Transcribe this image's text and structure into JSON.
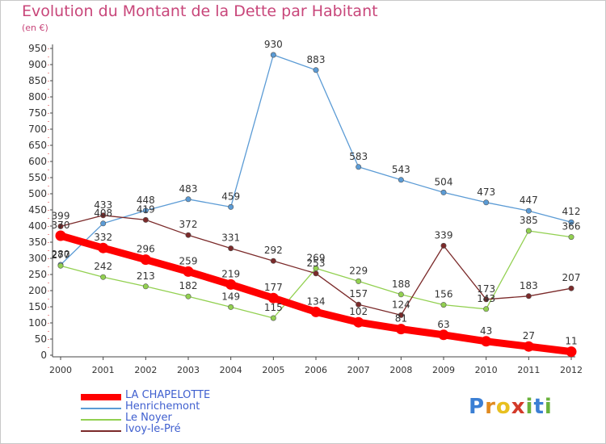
{
  "title": "Evolution du Montant de la Dette par Habitant",
  "subtitle": "(en €)",
  "brand": {
    "name": "Proxiti",
    "letters": [
      "P",
      "r",
      "o",
      "x",
      "i",
      "t",
      "i"
    ],
    "colors": [
      "#3b7fd4",
      "#e08a20",
      "#e8c020",
      "#d33a2a",
      "#6ab23c",
      "#3b7fd4",
      "#6ab23c"
    ]
  },
  "chart_data": {
    "type": "line",
    "title": "Evolution du Montant de la Dette par Habitant",
    "subtitle": "(en €)",
    "xlabel": "",
    "ylabel": "",
    "ylim": [
      0,
      950
    ],
    "yticks": [
      0,
      50,
      100,
      150,
      200,
      250,
      300,
      350,
      400,
      450,
      500,
      550,
      600,
      650,
      700,
      750,
      800,
      850,
      900,
      950
    ],
    "x": [
      "2000",
      "2001",
      "2002",
      "2003",
      "2004",
      "2005",
      "2006",
      "2007",
      "2008",
      "2009",
      "2010",
      "2011",
      "2012"
    ],
    "grid": false,
    "legend_position": "bottom-left",
    "series": [
      {
        "name": "LA CHAPELOTTE",
        "color": "#ff0000",
        "values": [
          370,
          332,
          296,
          259,
          219,
          177,
          134,
          102,
          81,
          63,
          43,
          27,
          11
        ],
        "labels": [
          "370",
          "332",
          "296",
          "259",
          "219",
          "177",
          "134",
          "102",
          "81",
          "63",
          "43",
          "27",
          "11"
        ]
      },
      {
        "name": "Henrichemont",
        "color": "#5b9bd5",
        "values": [
          280,
          408,
          448,
          483,
          459,
          930,
          883,
          583,
          543,
          504,
          473,
          447,
          412
        ],
        "labels": [
          "280",
          "408",
          "448",
          "483",
          "459",
          "930",
          "883",
          "583",
          "543",
          "504",
          "473",
          "447",
          "412"
        ]
      },
      {
        "name": "Le Noyer",
        "color": "#92d050",
        "values": [
          277,
          242,
          213,
          182,
          149,
          115,
          269,
          229,
          188,
          156,
          143,
          385,
          366
        ],
        "labels": [
          "277",
          "242",
          "213",
          "182",
          "149",
          "115",
          "269",
          "229",
          "188",
          "156",
          "143",
          "385",
          "366"
        ]
      },
      {
        "name": "Ivoy-le-Pré",
        "color": "#7b2a2a",
        "values": [
          399,
          433,
          419,
          372,
          331,
          292,
          253,
          157,
          124,
          339,
          173,
          183,
          207
        ],
        "labels": [
          "399",
          "433",
          "419",
          "372",
          "331",
          "292",
          "253",
          "157",
          "124",
          "339",
          "173",
          "183",
          "207"
        ]
      }
    ]
  }
}
